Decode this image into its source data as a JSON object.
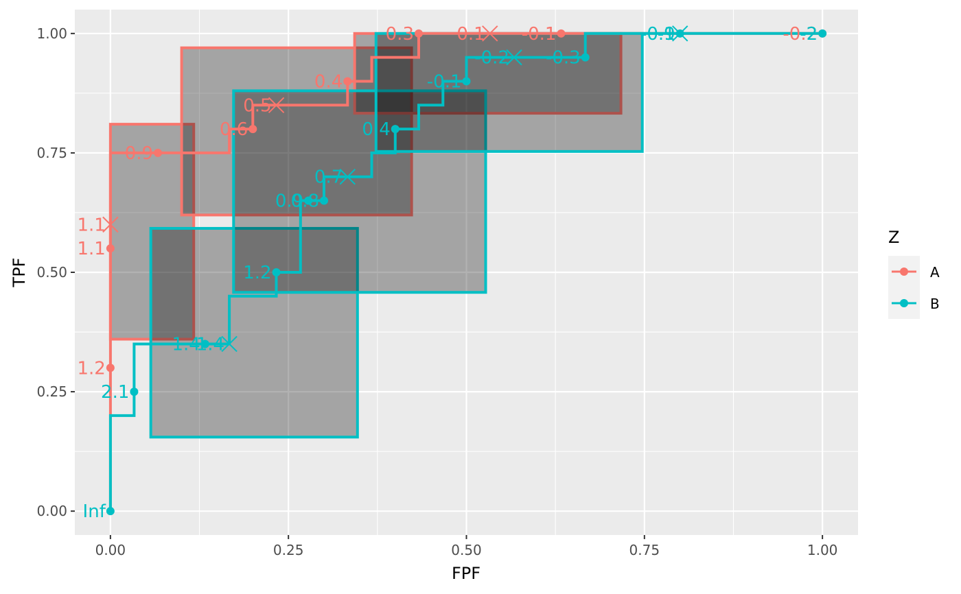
{
  "chart_data": {
    "type": "line",
    "xlabel": "FPF",
    "ylabel": "TPF",
    "xlim": [
      -0.05,
      1.05
    ],
    "ylim": [
      -0.05,
      1.05
    ],
    "x_ticks": [
      0,
      0.25,
      0.5,
      0.75,
      1
    ],
    "x_tick_labels": [
      "0.00",
      "0.25",
      "0.50",
      "0.75",
      "1.00"
    ],
    "y_ticks": [
      0,
      0.25,
      0.5,
      0.75,
      1
    ],
    "y_tick_labels": [
      "0.00",
      "0.25",
      "0.50",
      "0.75",
      "1.00"
    ],
    "grid": true,
    "legend": {
      "title": "Z",
      "position": "right",
      "entries": [
        "A",
        "B"
      ]
    },
    "series": [
      {
        "name": "A",
        "color": "#F8766D",
        "step": [
          [
            0,
            0
          ],
          [
            0,
            0.3
          ],
          [
            0,
            0.55
          ],
          [
            0,
            0.6
          ],
          [
            0,
            0.75
          ],
          [
            0.0667,
            0.75
          ],
          [
            0.167,
            0.75
          ],
          [
            0.167,
            0.8
          ],
          [
            0.2,
            0.8
          ],
          [
            0.2,
            0.85
          ],
          [
            0.233,
            0.85
          ],
          [
            0.333,
            0.85
          ],
          [
            0.333,
            0.9
          ],
          [
            0.367,
            0.9
          ],
          [
            0.367,
            0.95
          ],
          [
            0.4,
            0.95
          ],
          [
            0.433,
            0.95
          ],
          [
            0.433,
            1
          ],
          [
            0.533,
            1
          ],
          [
            0.633,
            1
          ],
          [
            1,
            1
          ]
        ],
        "points": [
          {
            "x": 0,
            "y": 0.3,
            "label": "1.2",
            "marker": "dot"
          },
          {
            "x": 0,
            "y": 0.55,
            "label": "1.1",
            "marker": "dot"
          },
          {
            "x": 0.0667,
            "y": 0.75,
            "label": "0.9",
            "marker": "dot"
          },
          {
            "x": 0.2,
            "y": 0.8,
            "label": "0.6",
            "marker": "dot"
          },
          {
            "x": 0.333,
            "y": 0.9,
            "label": "0.4",
            "marker": "dot"
          },
          {
            "x": 0.433,
            "y": 1,
            "label": "0.3",
            "marker": "dot"
          },
          {
            "x": 0.633,
            "y": 1,
            "label": "-0.1",
            "marker": "dot"
          },
          {
            "x": 1,
            "y": 1,
            "label": "-0.2",
            "marker": "dot"
          },
          {
            "x": 0,
            "y": 0.6,
            "label": "1.1",
            "marker": "x"
          },
          {
            "x": 0.233,
            "y": 0.85,
            "label": "0.5",
            "marker": "x"
          },
          {
            "x": 0.533,
            "y": 1,
            "label": "0.1",
            "marker": "x"
          }
        ],
        "regions": [
          {
            "x0": 0,
            "x1": 0.117,
            "y0": 0.36,
            "y1": 0.81
          },
          {
            "x0": 0.1,
            "x1": 0.423,
            "y0": 0.62,
            "y1": 0.97
          },
          {
            "x0": 0.343,
            "x1": 0.717,
            "y0": 0.833,
            "y1": 1
          }
        ]
      },
      {
        "name": "B",
        "color": "#00BFC4",
        "step": [
          [
            0,
            0
          ],
          [
            0,
            0.2
          ],
          [
            0.0333,
            0.2
          ],
          [
            0.0333,
            0.25
          ],
          [
            0.0333,
            0.35
          ],
          [
            0.133,
            0.35
          ],
          [
            0.167,
            0.35
          ],
          [
            0.167,
            0.45
          ],
          [
            0.233,
            0.45
          ],
          [
            0.233,
            0.5
          ],
          [
            0.267,
            0.5
          ],
          [
            0.267,
            0.65
          ],
          [
            0.3,
            0.65
          ],
          [
            0.3,
            0.7
          ],
          [
            0.333,
            0.7
          ],
          [
            0.367,
            0.7
          ],
          [
            0.367,
            0.75
          ],
          [
            0.4,
            0.75
          ],
          [
            0.4,
            0.8
          ],
          [
            0.433,
            0.8
          ],
          [
            0.433,
            0.85
          ],
          [
            0.467,
            0.85
          ],
          [
            0.467,
            0.9
          ],
          [
            0.5,
            0.9
          ],
          [
            0.5,
            0.95
          ],
          [
            0.567,
            0.95
          ],
          [
            0.667,
            0.95
          ],
          [
            0.667,
            1
          ],
          [
            0.8,
            1
          ],
          [
            1,
            1
          ]
        ],
        "points": [
          {
            "x": 0,
            "y": 0,
            "label": "Inf",
            "marker": "dot"
          },
          {
            "x": 0.0333,
            "y": 0.25,
            "label": "2.1",
            "marker": "dot"
          },
          {
            "x": 0.133,
            "y": 0.35,
            "label": "1.4",
            "marker": "dot"
          },
          {
            "x": 0.233,
            "y": 0.5,
            "label": "1.2",
            "marker": "dot"
          },
          {
            "x": 0.278,
            "y": 0.65,
            "label": "0.9",
            "marker": "dot"
          },
          {
            "x": 0.3,
            "y": 0.65,
            "label": "0.8",
            "marker": "dot"
          },
          {
            "x": 0.4,
            "y": 0.8,
            "label": "0.4",
            "marker": "dot"
          },
          {
            "x": 0.5,
            "y": 0.9,
            "label": "-0.1",
            "marker": "dot"
          },
          {
            "x": 0.667,
            "y": 0.95,
            "label": "-0.3",
            "marker": "dot"
          },
          {
            "x": 0.8,
            "y": 1,
            "label": "-0.9",
            "marker": "dot"
          },
          {
            "x": 1,
            "y": 1,
            "label": "-2",
            "marker": "dot"
          },
          {
            "x": 0.167,
            "y": 0.35,
            "label": "1.4",
            "marker": "x"
          },
          {
            "x": 0.333,
            "y": 0.7,
            "label": "0.7",
            "marker": "x"
          },
          {
            "x": 0.567,
            "y": 0.95,
            "label": "-0.2",
            "marker": "x"
          },
          {
            "x": 0.8,
            "y": 1,
            "label": "-1",
            "marker": "x"
          }
        ],
        "regions": [
          {
            "x0": 0.0567,
            "x1": 0.347,
            "y0": 0.155,
            "y1": 0.592
          },
          {
            "x0": 0.173,
            "x1": 0.527,
            "y0": 0.458,
            "y1": 0.88
          },
          {
            "x0": 0.373,
            "x1": 0.747,
            "y0": 0.753,
            "y1": 1
          }
        ]
      }
    ]
  }
}
